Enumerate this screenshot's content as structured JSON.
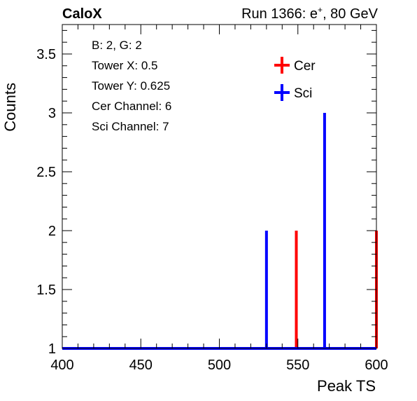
{
  "header": {
    "left": "CaloX",
    "right_prefix": "Run 1366: e",
    "right_sup": "+",
    "right_suffix": ", 80 GeV"
  },
  "info_box": [
    "B: 2, G: 2",
    "Tower X: 0.5",
    "Tower Y: 0.625",
    "Cer Channel: 6",
    "Sci Channel: 7"
  ],
  "colors": {
    "cer": "#ff0000",
    "sci": "#0000ff"
  },
  "chart_data": {
    "type": "bar",
    "xlabel": "Peak TS",
    "ylabel": "Counts",
    "xlim": [
      400,
      600
    ],
    "ylim": [
      1,
      3.75
    ],
    "x_ticks": [
      "400",
      "450",
      "500",
      "550",
      "600"
    ],
    "y_ticks": [
      "1",
      "1.5",
      "2",
      "2.5",
      "3",
      "3.5"
    ],
    "legend_position": "top-right",
    "grid": false,
    "series": [
      {
        "name": "Cer",
        "color": "#ff0000",
        "x": [
          549,
          600
        ],
        "y": [
          2,
          2
        ]
      },
      {
        "name": "Sci",
        "color": "#0000ff",
        "x": [
          530,
          567
        ],
        "y": [
          2,
          3
        ]
      }
    ]
  }
}
